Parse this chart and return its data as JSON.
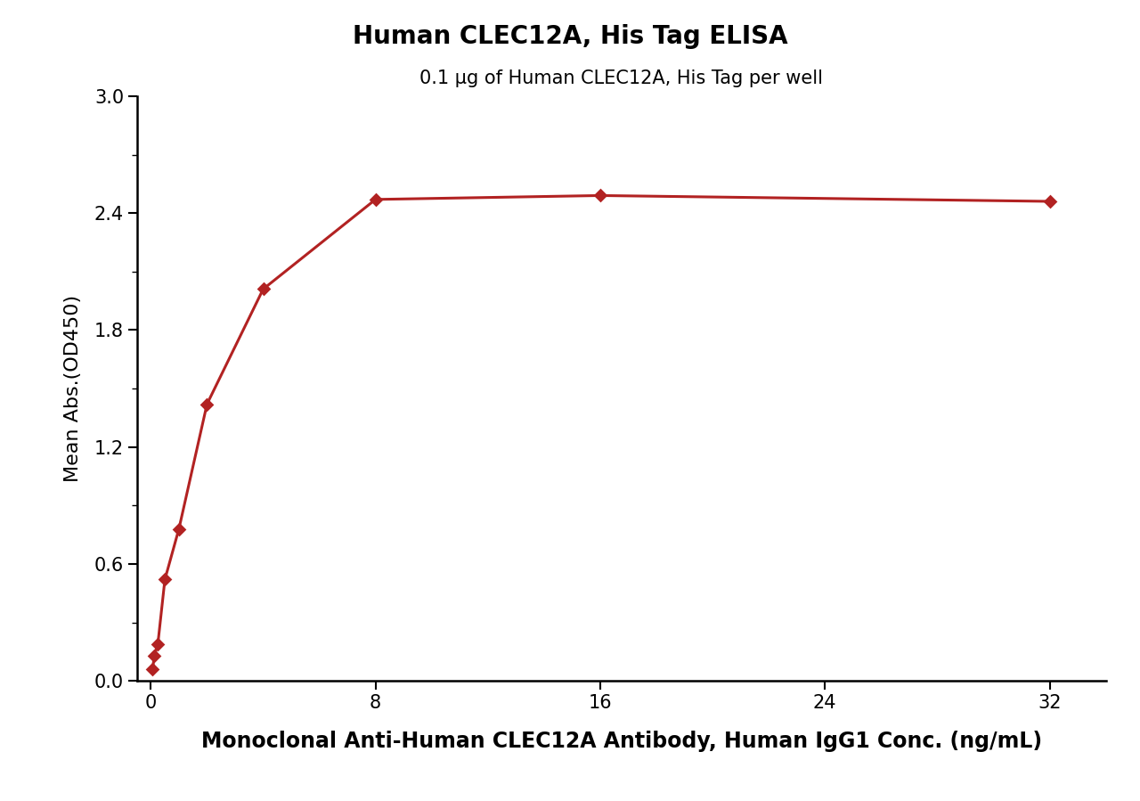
{
  "title": "Human CLEC12A, His Tag ELISA",
  "subtitle": "0.1 μg of Human CLEC12A, His Tag per well",
  "xlabel": "Monoclonal Anti-Human CLEC12A Antibody, Human IgG1 Conc. (ng/mL)",
  "ylabel": "Mean Abs.(OD450)",
  "x_data": [
    0.0625,
    0.125,
    0.25,
    0.5,
    1.0,
    2.0,
    4.0,
    8.0,
    16.0,
    32.0
  ],
  "y_data": [
    0.06,
    0.13,
    0.19,
    0.52,
    0.78,
    1.42,
    2.01,
    2.47,
    2.49,
    2.46
  ],
  "color": "#B22222",
  "xlim": [
    -0.5,
    34
  ],
  "ylim": [
    0.0,
    3.0
  ],
  "xticks": [
    0,
    8,
    16,
    24,
    32
  ],
  "yticks": [
    0.0,
    0.6,
    1.2,
    1.8,
    2.4,
    3.0
  ],
  "title_fontsize": 20,
  "subtitle_fontsize": 15,
  "xlabel_fontsize": 17,
  "ylabel_fontsize": 16,
  "tick_fontsize": 15,
  "background_color": "#ffffff",
  "marker": "D",
  "marker_size": 8,
  "line_width": 2.2
}
